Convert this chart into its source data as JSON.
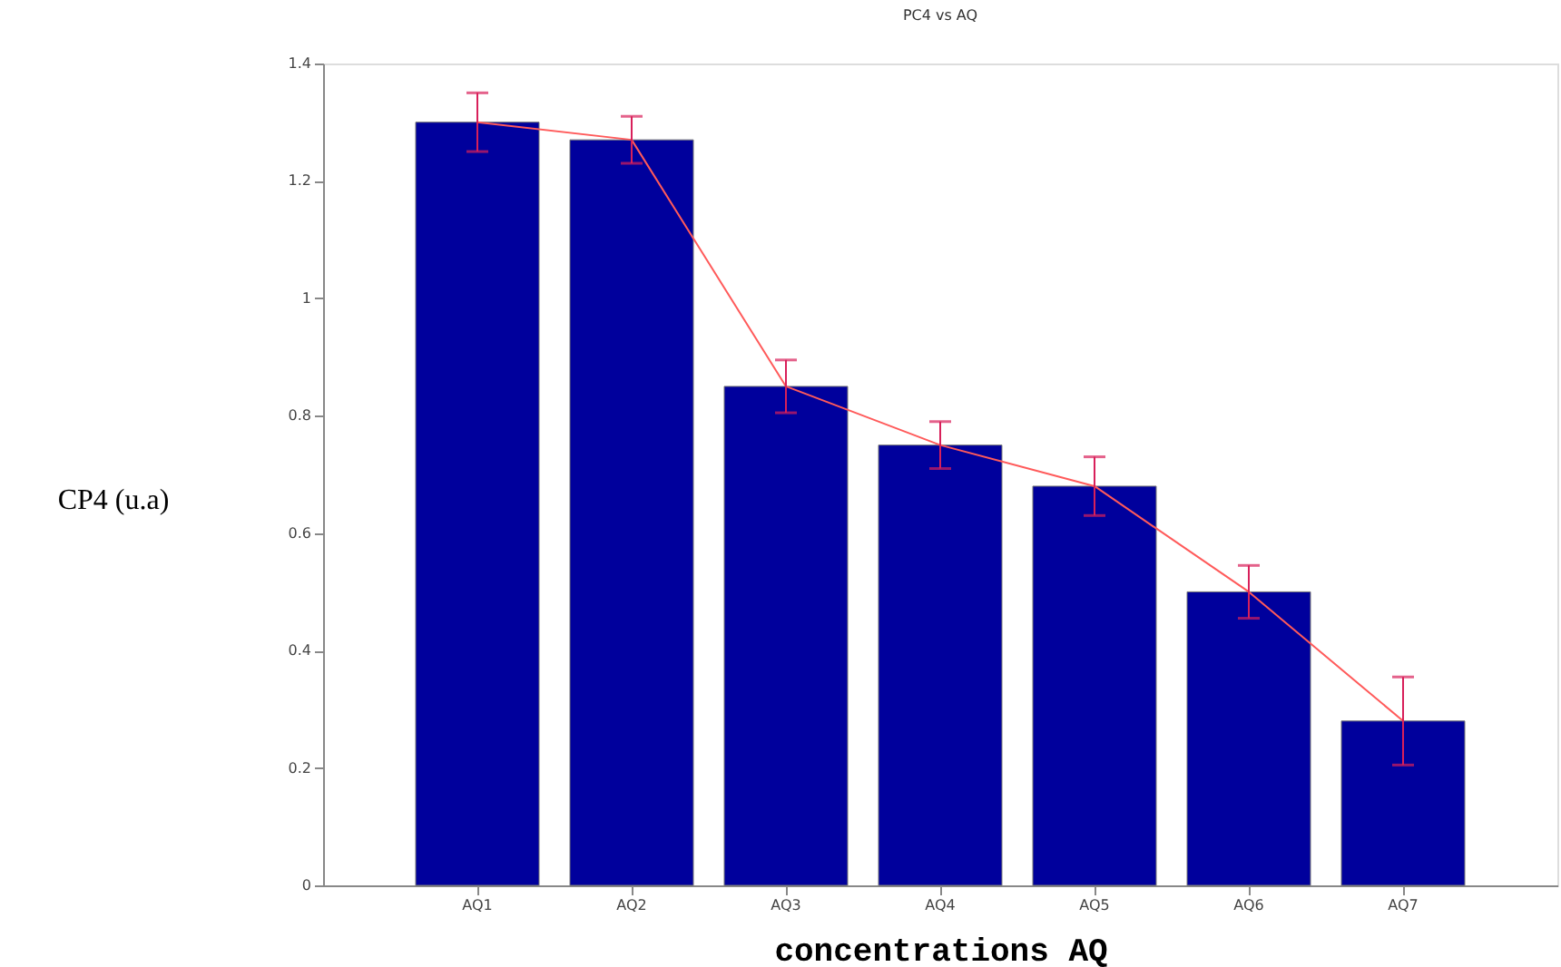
{
  "chart_data": {
    "type": "bar",
    "title": "PC4 vs AQ",
    "xlabel": "concentrations AQ",
    "ylabel": "CP4 (u.a)",
    "categories": [
      "AQ1",
      "AQ2",
      "AQ3",
      "AQ4",
      "AQ5",
      "AQ6",
      "AQ7"
    ],
    "series": [
      {
        "color": "#00009c",
        "values": [
          1.3,
          1.27,
          0.85,
          0.75,
          0.68,
          0.5,
          0.28
        ]
      },
      {
        "type": "line",
        "color": "#ff5a5a",
        "values": [
          1.3,
          1.27,
          0.85,
          0.75,
          0.68,
          0.5,
          0.28
        ],
        "errors": [
          0.05,
          0.04,
          0.045,
          0.04,
          0.05,
          0.045,
          0.075
        ]
      }
    ],
    "ylim": [
      0,
      1.4
    ],
    "yticks": [
      0,
      {
        "value": 0.2,
        "label": "0.2"
      },
      {
        "value": 0.4,
        "label": "0.4"
      },
      {
        "value": 0.6,
        "label": "0.6"
      },
      {
        "value": 0.8,
        "label": "0.8"
      },
      1,
      {
        "value": 1.2,
        "label": "1.2"
      },
      {
        "value": 1.4,
        "label": "1.4"
      }
    ],
    "grid": false
  }
}
